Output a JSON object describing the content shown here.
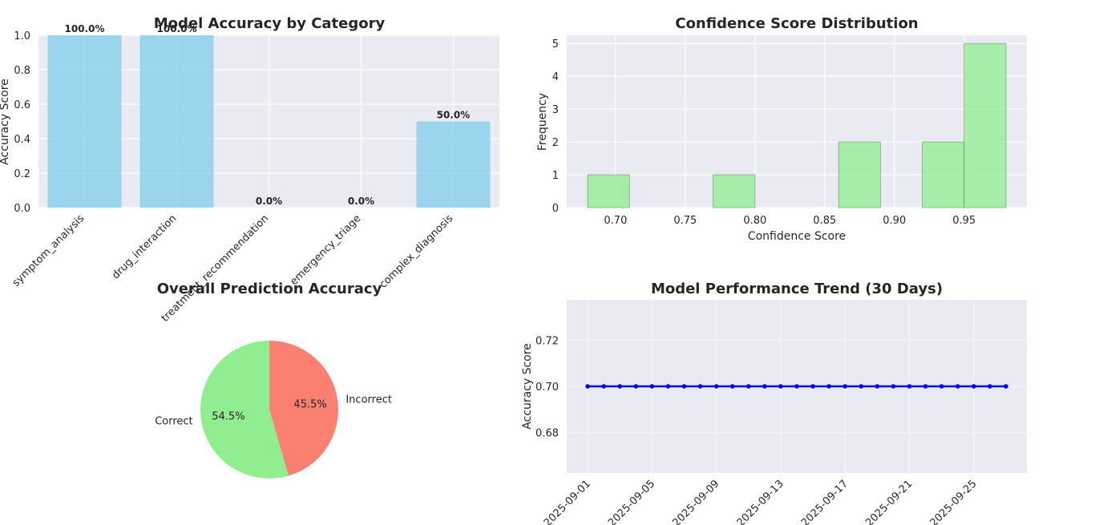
{
  "chart_data": [
    {
      "type": "bar",
      "title": "Model Accuracy by Category",
      "xlabel": "",
      "ylabel": "Accuracy Score",
      "ylim": [
        0,
        1
      ],
      "yticks": [
        "0.0",
        "0.2",
        "0.4",
        "0.6",
        "0.8",
        "1.0"
      ],
      "categories": [
        "symptom_analysis",
        "drug_interaction",
        "treatment_recommendation",
        "emergency_triage",
        "complex_diagnosis"
      ],
      "values": [
        1.0,
        1.0,
        0.0,
        0.0,
        0.5
      ],
      "data_labels": [
        "100.0%",
        "100.0%",
        "0.0%",
        "0.0%",
        "50.0%"
      ],
      "color": "#87CEEB",
      "grid": true
    },
    {
      "type": "bar",
      "subtype": "histogram",
      "title": "Confidence Score Distribution",
      "xlabel": "Confidence Score",
      "ylabel": "Frequency",
      "xlim": [
        0.665,
        0.995
      ],
      "ylim": [
        0,
        5.25
      ],
      "xticks": [
        "0.70",
        "0.75",
        "0.80",
        "0.85",
        "0.90",
        "0.95"
      ],
      "yticks": [
        "0",
        "1",
        "2",
        "3",
        "4",
        "5"
      ],
      "bins": [
        0.68,
        0.71,
        0.74,
        0.77,
        0.8,
        0.83,
        0.86,
        0.89,
        0.92,
        0.95,
        0.98
      ],
      "counts": [
        1,
        0,
        0,
        1,
        0,
        0,
        2,
        0,
        2,
        5
      ],
      "color": "#90EE90",
      "grid": true
    },
    {
      "type": "pie",
      "title": "Overall Prediction Accuracy",
      "labels": [
        "Correct",
        "Incorrect"
      ],
      "values": [
        54.5,
        45.5
      ],
      "pct_labels": [
        "54.5%",
        "45.5%"
      ],
      "colors": [
        "#90EE90",
        "#FA8072"
      ]
    },
    {
      "type": "line",
      "title": "Model Performance Trend (30 Days)",
      "xlabel": "",
      "ylabel": "Accuracy Score",
      "ylim": [
        0.6625,
        0.7375
      ],
      "yticks": [
        "0.68",
        "0.70",
        "0.72"
      ],
      "xticks": [
        "2025-09-01",
        "2025-09-05",
        "2025-09-09",
        "2025-09-13",
        "2025-09-17",
        "2025-09-21",
        "2025-09-25"
      ],
      "x_start": "2025-09-01",
      "x_end": "2025-09-27",
      "x": [
        "2025-09-01",
        "2025-09-02",
        "2025-09-03",
        "2025-09-04",
        "2025-09-05",
        "2025-09-06",
        "2025-09-07",
        "2025-09-08",
        "2025-09-09",
        "2025-09-10",
        "2025-09-11",
        "2025-09-12",
        "2025-09-13",
        "2025-09-14",
        "2025-09-15",
        "2025-09-16",
        "2025-09-17",
        "2025-09-18",
        "2025-09-19",
        "2025-09-20",
        "2025-09-21",
        "2025-09-22",
        "2025-09-23",
        "2025-09-24",
        "2025-09-25",
        "2025-09-26",
        "2025-09-27"
      ],
      "values": [
        0.7,
        0.7,
        0.7,
        0.7,
        0.7,
        0.7,
        0.7,
        0.7,
        0.7,
        0.7,
        0.7,
        0.7,
        0.7,
        0.7,
        0.7,
        0.7,
        0.7,
        0.7,
        0.7,
        0.7,
        0.7,
        0.7,
        0.7,
        0.7,
        0.7,
        0.7,
        0.7
      ],
      "color": "#0000FF",
      "grid": true
    }
  ]
}
